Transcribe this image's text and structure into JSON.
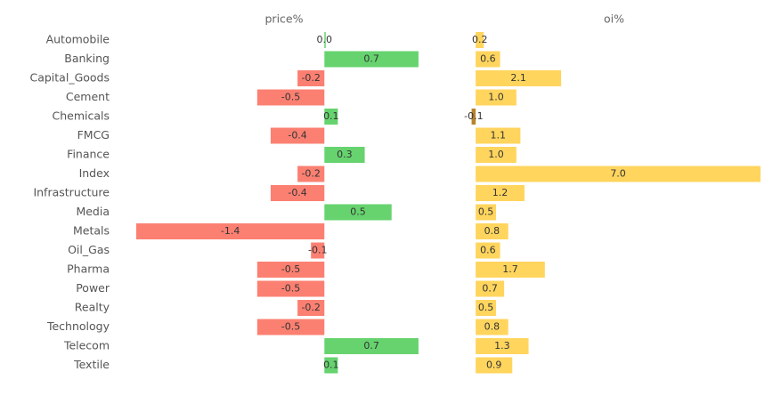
{
  "chart_data": {
    "type": "bar",
    "categories": [
      "Automobile",
      "Banking",
      "Capital_Goods",
      "Cement",
      "Chemicals",
      "FMCG",
      "Finance",
      "Index",
      "Infrastructure",
      "Media",
      "Metals",
      "Oil_Gas",
      "Pharma",
      "Power",
      "Realty",
      "Technology",
      "Telecom",
      "Textile"
    ],
    "series": [
      {
        "name": "price%",
        "colors": {
          "positive": "#66d36e",
          "negative": "#fb8072"
        },
        "xlim": [
          -1.4,
          0.8
        ],
        "values": [
          0.0,
          0.7,
          -0.2,
          -0.5,
          0.1,
          -0.4,
          0.3,
          -0.2,
          -0.4,
          0.5,
          -1.4,
          -0.1,
          -0.5,
          -0.5,
          -0.2,
          -0.5,
          0.7,
          0.1
        ],
        "value_labels": [
          "0.0",
          "0.7",
          "-0.2",
          "-0.5",
          "0.1",
          "-0.4",
          "0.3",
          "-0.2",
          "-0.4",
          "0.5",
          "-1.4",
          "-0.1",
          "-0.5",
          "-0.5",
          "-0.2",
          "-0.5",
          "0.7",
          "0.1"
        ]
      },
      {
        "name": "oi%",
        "colors": {
          "positive": "#ffd55e",
          "negative": "#b8832b"
        },
        "xlim": [
          -0.2,
          7.0
        ],
        "values": [
          0.2,
          0.6,
          2.1,
          1.0,
          -0.1,
          1.1,
          1.0,
          7.0,
          1.2,
          0.5,
          0.8,
          0.6,
          1.7,
          0.7,
          0.5,
          0.8,
          1.3,
          0.9
        ],
        "value_labels": [
          "0.2",
          "0.6",
          "2.1",
          "1.0",
          "-0.1",
          "1.1",
          "1.0",
          "7.0",
          "1.2",
          "0.5",
          "0.8",
          "0.6",
          "1.7",
          "0.7",
          "0.5",
          "0.8",
          "1.3",
          "0.9"
        ]
      }
    ]
  }
}
